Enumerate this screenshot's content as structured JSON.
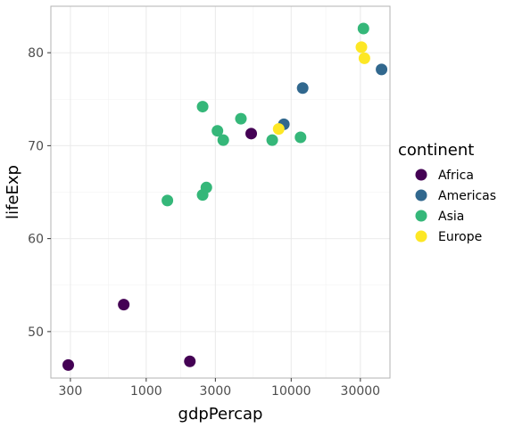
{
  "chart_data": {
    "type": "scatter",
    "xlabel": "gdpPercap",
    "ylabel": "lifeExp",
    "x_scale": "log10",
    "xlim": [
      220,
      48000
    ],
    "ylim": [
      45,
      85
    ],
    "x_ticks": [
      300,
      1000,
      3000,
      10000,
      30000
    ],
    "x_tick_labels": [
      "300",
      "1000",
      "3000",
      "10000",
      "30000"
    ],
    "y_ticks": [
      50,
      60,
      70,
      80
    ],
    "y_tick_labels": [
      "50",
      "60",
      "70",
      "80"
    ],
    "grid": true,
    "legend": {
      "title": "continent",
      "placement": "right"
    },
    "series": [
      {
        "name": "Africa",
        "color": "#440154",
        "points": [
          [
            290,
            46.4
          ],
          [
            700,
            52.9
          ],
          [
            2000,
            46.8
          ],
          [
            5300,
            71.3
          ]
        ]
      },
      {
        "name": "Americas",
        "color": "#31688E",
        "points": [
          [
            12000,
            76.2
          ],
          [
            8900,
            72.3
          ],
          [
            42000,
            78.2
          ]
        ]
      },
      {
        "name": "Asia",
        "color": "#35B779",
        "points": [
          [
            31500,
            82.6
          ],
          [
            2450,
            74.2
          ],
          [
            4500,
            72.9
          ],
          [
            3100,
            71.6
          ],
          [
            3400,
            70.6
          ],
          [
            7400,
            70.6
          ],
          [
            11600,
            70.9
          ],
          [
            1400,
            64.1
          ],
          [
            2450,
            64.7
          ],
          [
            2600,
            65.5
          ]
        ]
      },
      {
        "name": "Europe",
        "color": "#FDE725",
        "points": [
          [
            30500,
            80.6
          ],
          [
            32000,
            79.4
          ],
          [
            8200,
            71.8
          ]
        ]
      }
    ]
  }
}
